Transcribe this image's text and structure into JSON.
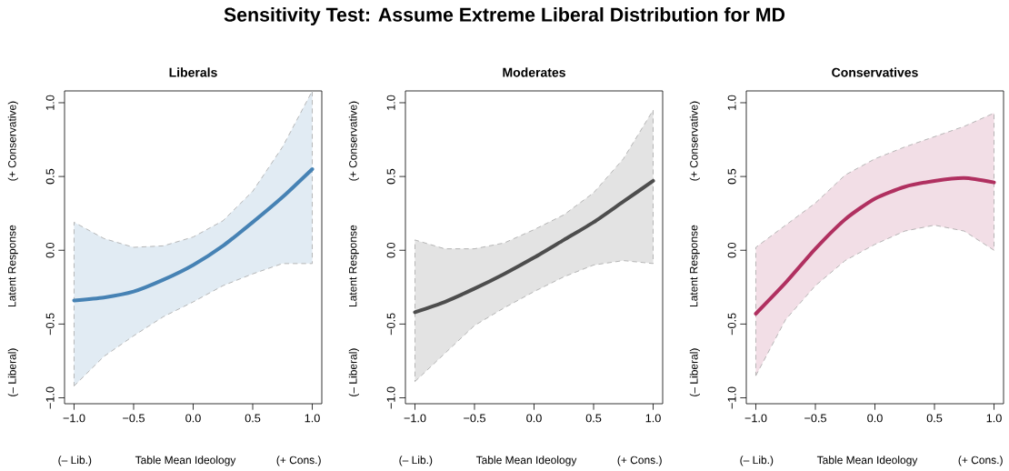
{
  "chart_data": [
    {
      "type": "other",
      "title": "Sensitivity Test: Assume Extreme Liberal Distribution for MD"
    },
    {
      "type": "line",
      "title": "Liberals",
      "xlabel": "Table Mean Ideology",
      "ylabel": "Latent Response",
      "annotations": [
        "(– Liberal)",
        "(+ Conservative)",
        "(– Lib.)",
        "(+ Cons.)"
      ],
      "x": [
        -1,
        -0.75,
        -0.5,
        -0.25,
        0,
        0.25,
        0.5,
        0.75,
        1
      ],
      "xlim": [
        -1.08,
        1.08
      ],
      "ylim": [
        -1.04,
        1.08
      ],
      "xticks": [
        {
          "value": -1,
          "label": "−1.0"
        },
        {
          "value": -0.5,
          "label": "−0.5"
        },
        {
          "value": 0,
          "label": "0.0"
        },
        {
          "value": 0.5,
          "label": "0.5"
        },
        {
          "value": 1,
          "label": "1.0"
        }
      ],
      "yticks": [
        {
          "value": -1,
          "label": "−1.0"
        },
        {
          "value": -0.5,
          "label": "−0.5"
        },
        {
          "value": 0,
          "label": "0.0"
        },
        {
          "value": 0.5,
          "label": "0.5"
        },
        {
          "value": 1,
          "label": "1.0"
        }
      ],
      "series": [
        {
          "color": "#4682b4",
          "values": [
            -0.34,
            -0.32,
            -0.28,
            -0.2,
            -0.1,
            0.03,
            0.19,
            0.36,
            0.55
          ],
          "lower": [
            -0.92,
            -0.72,
            -0.58,
            -0.45,
            -0.35,
            -0.24,
            -0.16,
            -0.09,
            -0.09
          ],
          "upper": [
            0.19,
            0.08,
            0.02,
            0.03,
            0.09,
            0.2,
            0.4,
            0.7,
            1.08
          ]
        }
      ]
    },
    {
      "type": "line",
      "title": "Moderates",
      "xlabel": "Table Mean Ideology",
      "ylabel": "Latent Response",
      "annotations": [
        "(– Liberal)",
        "(+ Conservative)",
        "(– Lib.)",
        "(+ Cons.)"
      ],
      "x": [
        -1,
        -0.75,
        -0.5,
        -0.25,
        0,
        0.25,
        0.5,
        0.75,
        1
      ],
      "xlim": [
        -1.08,
        1.08
      ],
      "ylim": [
        -1.04,
        1.08
      ],
      "xticks": [
        {
          "value": -1,
          "label": "−1.0"
        },
        {
          "value": -0.5,
          "label": "−0.5"
        },
        {
          "value": 0,
          "label": "0.0"
        },
        {
          "value": 0.5,
          "label": "0.5"
        },
        {
          "value": 1,
          "label": "1.0"
        }
      ],
      "yticks": [
        {
          "value": -1,
          "label": "−1.0"
        },
        {
          "value": -0.5,
          "label": "−0.5"
        },
        {
          "value": 0,
          "label": "0.0"
        },
        {
          "value": 0.5,
          "label": "0.5"
        },
        {
          "value": 1,
          "label": "1.0"
        }
      ],
      "series": [
        {
          "color": "#4d4d4d",
          "values": [
            -0.42,
            -0.35,
            -0.26,
            -0.16,
            -0.05,
            0.07,
            0.19,
            0.33,
            0.47
          ],
          "lower": [
            -0.89,
            -0.7,
            -0.51,
            -0.39,
            -0.28,
            -0.18,
            -0.1,
            -0.07,
            -0.09
          ],
          "upper": [
            0.07,
            0.01,
            0.01,
            0.05,
            0.14,
            0.24,
            0.39,
            0.62,
            0.95
          ]
        }
      ]
    },
    {
      "type": "line",
      "title": "Conservatives",
      "xlabel": "Table Mean Ideology",
      "ylabel": "Latent Response",
      "annotations": [
        "(– Liberal)",
        "(+ Conservative)",
        "(– Lib.)",
        "(+ Cons.)"
      ],
      "x": [
        -1,
        -0.75,
        -0.5,
        -0.25,
        0,
        0.25,
        0.5,
        0.75,
        1
      ],
      "xlim": [
        -1.08,
        1.08
      ],
      "ylim": [
        -1.04,
        1.08
      ],
      "xticks": [
        {
          "value": -1,
          "label": "−1.0"
        },
        {
          "value": -0.5,
          "label": "−0.5"
        },
        {
          "value": 0,
          "label": "0.0"
        },
        {
          "value": 0.5,
          "label": "0.5"
        },
        {
          "value": 1,
          "label": "1.0"
        }
      ],
      "yticks": [
        {
          "value": -1,
          "label": "−1.0"
        },
        {
          "value": -0.5,
          "label": "−0.5"
        },
        {
          "value": 0,
          "label": "0.0"
        },
        {
          "value": 0.5,
          "label": "0.5"
        },
        {
          "value": 1,
          "label": "1.0"
        }
      ],
      "series": [
        {
          "color": "#b03060",
          "values": [
            -0.43,
            -0.22,
            0.01,
            0.21,
            0.35,
            0.43,
            0.47,
            0.49,
            0.46
          ],
          "lower": [
            -0.85,
            -0.47,
            -0.24,
            -0.07,
            0.04,
            0.13,
            0.17,
            0.13,
            0.0
          ],
          "upper": [
            0.02,
            0.17,
            0.32,
            0.51,
            0.62,
            0.7,
            0.77,
            0.84,
            0.93
          ]
        }
      ]
    }
  ]
}
